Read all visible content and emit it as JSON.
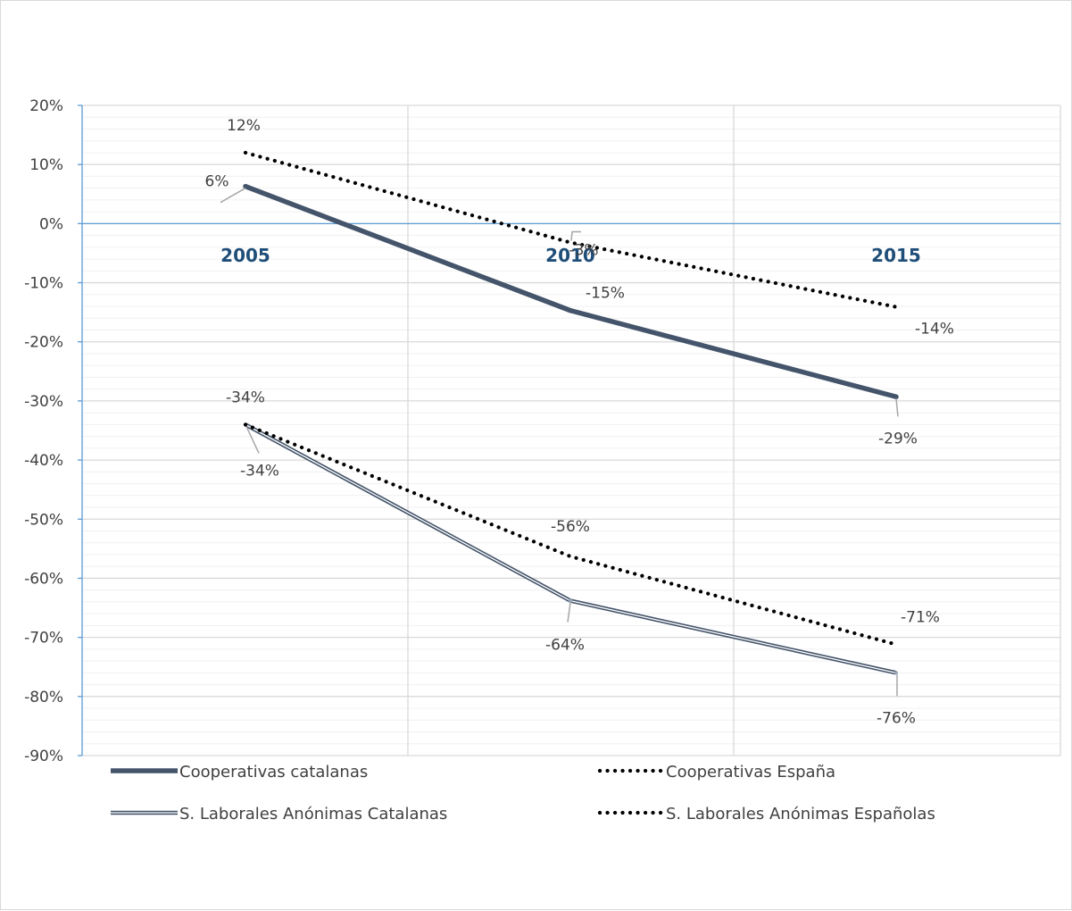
{
  "chart_data": {
    "type": "line",
    "title": "",
    "xlabel": "",
    "ylabel": "",
    "categories": [
      "2005",
      "2010",
      "2015"
    ],
    "ylim": [
      -90,
      20
    ],
    "yticks": [
      20,
      10,
      0,
      -10,
      -20,
      -30,
      -40,
      -50,
      -60,
      -70,
      -80,
      -90
    ],
    "ytick_labels": [
      "20%",
      "10%",
      "0%",
      "-10%",
      "-20%",
      "-30%",
      "-40%",
      "-50%",
      "-60%",
      "-70%",
      "-80%",
      "-90%"
    ],
    "grid": true,
    "legend_position": "bottom",
    "series": [
      {
        "name": "Cooperativas catalanas",
        "style": "thick-solid",
        "color": "#44546a",
        "values": [
          6.3,
          -14.7,
          -29.3
        ],
        "labels": [
          "6%",
          "-15%",
          "-29%"
        ]
      },
      {
        "name": "Cooperativas España",
        "style": "dotted",
        "color": "#000000",
        "values": [
          12.0,
          -3.2,
          -14.1
        ],
        "labels": [
          "12%",
          "-3%",
          "-14%"
        ]
      },
      {
        "name": "S. Laborales Anónimas Catalanas",
        "style": "double",
        "color": "#44546a",
        "values": [
          -34.0,
          -63.8,
          -76.0
        ],
        "labels": [
          "-34%",
          "-64%",
          "-76%"
        ]
      },
      {
        "name": "S. Laborales Anónimas Españolas",
        "style": "dotted",
        "color": "#000000",
        "values": [
          -34.0,
          -56.3,
          -71.2
        ],
        "labels": [
          "-34%",
          "-56%",
          "-71%"
        ]
      }
    ]
  }
}
